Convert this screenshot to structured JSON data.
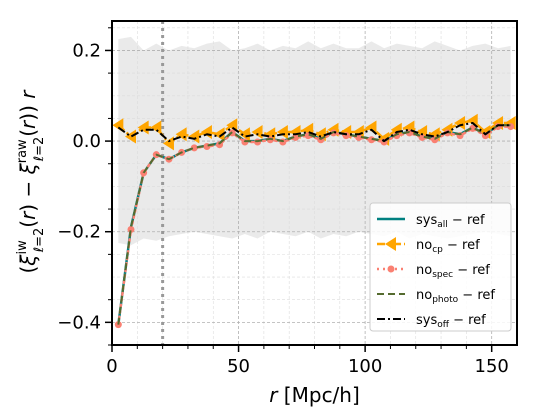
{
  "chart_data": {
    "type": "line",
    "xlabel_var": "r",
    "xlabel_unit": " [Mpc/h]",
    "xlim": [
      0,
      160
    ],
    "ylim": [
      -0.45,
      0.265
    ],
    "xticks": [
      0,
      50,
      100,
      150
    ],
    "xtick_labels": [
      "0",
      "50",
      "100",
      "150"
    ],
    "yticks": [
      -0.4,
      -0.2,
      0.0,
      0.2
    ],
    "ytick_labels": [
      "−0.4",
      "−0.2",
      "0.0",
      "0.2"
    ],
    "grid": true,
    "vline_x": 20,
    "legend_position": "lower-right",
    "band": {
      "x": [
        2.5,
        7.5,
        12.5,
        17.5,
        22.5,
        27.5,
        32.5,
        37.5,
        42.5,
        47.5,
        52.5,
        57.5,
        62.5,
        67.5,
        72.5,
        77.5,
        82.5,
        87.5,
        92.5,
        97.5,
        102.5,
        107.5,
        112.5,
        117.5,
        122.5,
        127.5,
        132.5,
        137.5,
        142.5,
        147.5,
        152.5,
        157.5
      ],
      "upper": [
        0.225,
        0.23,
        0.2,
        0.215,
        0.2,
        0.21,
        0.205,
        0.215,
        0.22,
        0.2,
        0.205,
        0.215,
        0.2,
        0.21,
        0.205,
        0.22,
        0.205,
        0.215,
        0.205,
        0.205,
        0.22,
        0.205,
        0.215,
        0.21,
        0.205,
        0.22,
        0.21,
        0.2,
        0.21,
        0.215,
        0.205,
        0.21
      ],
      "lower": [
        -0.225,
        -0.23,
        -0.215,
        -0.22,
        -0.21,
        -0.205,
        -0.2,
        -0.205,
        -0.21,
        -0.215,
        -0.205,
        -0.215,
        -0.2,
        -0.205,
        -0.21,
        -0.2,
        -0.215,
        -0.205,
        -0.21,
        -0.2,
        -0.205,
        -0.21,
        -0.2,
        -0.215,
        -0.205,
        -0.21,
        -0.215,
        -0.21,
        -0.205,
        -0.2,
        -0.205,
        -0.21
      ]
    },
    "x": [
      2.5,
      7.5,
      12.5,
      17.5,
      22.5,
      27.5,
      32.5,
      37.5,
      42.5,
      47.5,
      52.5,
      57.5,
      62.5,
      67.5,
      72.5,
      77.5,
      82.5,
      87.5,
      92.5,
      97.5,
      102.5,
      107.5,
      112.5,
      117.5,
      122.5,
      127.5,
      132.5,
      137.5,
      142.5,
      147.5,
      152.5,
      157.5
    ],
    "series": [
      {
        "name": "all",
        "values": [
          -0.405,
          -0.19,
          -0.07,
          -0.03,
          -0.04,
          -0.025,
          -0.015,
          -0.01,
          -0.005,
          0.02,
          0.0,
          0.0,
          0.005,
          0.0,
          0.01,
          0.015,
          0.005,
          0.02,
          0.015,
          0.01,
          0.005,
          0.0,
          0.015,
          0.02,
          0.01,
          0.005,
          0.02,
          0.015,
          0.03,
          0.015,
          0.035,
          0.035
        ],
        "color": "#008080",
        "style": "solid",
        "width": 2.5,
        "marker": "none"
      },
      {
        "name": "cp",
        "values": [
          0.035,
          0.01,
          0.03,
          0.03,
          -0.005,
          0.015,
          0.01,
          0.02,
          0.015,
          0.035,
          0.015,
          0.02,
          0.015,
          0.02,
          0.02,
          0.025,
          0.015,
          0.025,
          0.02,
          0.02,
          0.03,
          0.005,
          0.025,
          0.03,
          0.02,
          0.015,
          0.025,
          0.04,
          0.045,
          0.02,
          0.04,
          0.04
        ],
        "color": "#ffa500",
        "style": "dash-dot",
        "width": 2.5,
        "marker": "triangle-left"
      },
      {
        "name": "spec",
        "values": [
          -0.405,
          -0.195,
          -0.07,
          -0.03,
          -0.04,
          -0.025,
          -0.015,
          -0.012,
          -0.008,
          0.018,
          -0.002,
          -0.002,
          0.003,
          -0.002,
          0.008,
          0.012,
          0.003,
          0.018,
          0.012,
          0.008,
          0.003,
          -0.002,
          0.012,
          0.018,
          0.008,
          0.003,
          0.018,
          0.012,
          0.028,
          0.012,
          0.032,
          0.032
        ],
        "color": "#fa8072",
        "style": "dotted",
        "width": 2.5,
        "marker": "circle"
      },
      {
        "name": "photo",
        "values": [
          -0.405,
          -0.19,
          -0.07,
          -0.03,
          -0.04,
          -0.025,
          -0.015,
          -0.01,
          -0.005,
          0.02,
          0.0,
          0.0,
          0.005,
          0.0,
          0.01,
          0.015,
          0.005,
          0.02,
          0.015,
          0.01,
          0.005,
          0.0,
          0.015,
          0.02,
          0.01,
          0.005,
          0.02,
          0.015,
          0.03,
          0.015,
          0.035,
          0.035
        ],
        "color": "#556b2f",
        "style": "dashed",
        "width": 2.0,
        "marker": "none"
      },
      {
        "name": "off",
        "values": [
          0.03,
          0.01,
          0.025,
          0.025,
          0.0,
          0.01,
          0.005,
          0.015,
          0.01,
          0.03,
          0.01,
          0.015,
          0.01,
          0.015,
          0.015,
          0.02,
          0.01,
          0.02,
          0.015,
          0.015,
          0.025,
          0.0,
          0.02,
          0.025,
          0.015,
          0.01,
          0.02,
          0.035,
          0.04,
          0.015,
          0.035,
          0.035
        ],
        "color": "#000000",
        "style": "dash-dot",
        "width": 2.0,
        "marker": "none"
      }
    ],
    "legend": [
      {
        "base": "sys",
        "sub": "all",
        "rest": " − ref",
        "series": "all"
      },
      {
        "base": "no",
        "sub": "cp",
        "rest": " − ref",
        "series": "cp"
      },
      {
        "base": "no",
        "sub": "spec",
        "rest": " − ref",
        "series": "spec"
      },
      {
        "base": "no",
        "sub": "photo",
        "rest": " − ref",
        "series": "photo"
      },
      {
        "base": "sys",
        "sub": "off",
        "rest": " − ref",
        "series": "off"
      }
    ]
  }
}
